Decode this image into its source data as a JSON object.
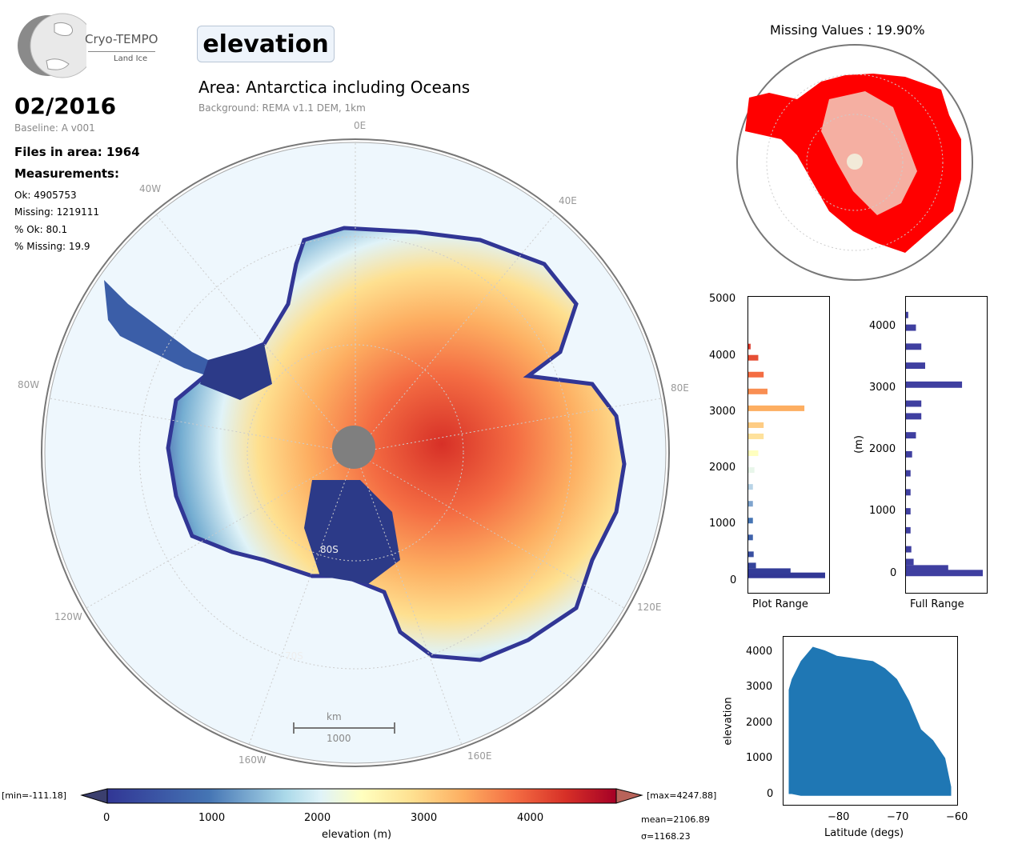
{
  "logo": {
    "name": "Cryo-TEMPO",
    "subtitle": "Land Ice"
  },
  "variable": "elevation",
  "area_title": "Area: Antarctica including Oceans",
  "background_note": "Background: REMA v1.1 DEM, 1km",
  "date": "02/2016",
  "baseline": "Baseline: A v001",
  "files_in_area": "Files in area: 1964",
  "measurements_title": "Measurements:",
  "stats": {
    "ok": "Ok: 4905753",
    "missing": "Missing: 1219111",
    "pct_ok": "% Ok: 80.1",
    "pct_missing": "% Missing: 19.9"
  },
  "map": {
    "longitude_labels": [
      "0E",
      "40E",
      "80E",
      "120E",
      "160E",
      "160W",
      "120W",
      "80W",
      "40W"
    ],
    "latitude_labels": [
      "80S",
      "70S"
    ],
    "scalebar_unit": "km",
    "scalebar_value": "1000"
  },
  "missing_title": "Missing Values : 19.90%",
  "colorbar": {
    "min_label": "[min=-111.18]",
    "max_label": "[max=4247.88]",
    "ticks": [
      "0",
      "1000",
      "2000",
      "3000",
      "4000"
    ],
    "label": "elevation (m)",
    "mean": "mean=2106.89",
    "sigma": "σ=1168.23"
  },
  "hist_plot_range": {
    "ticks": [
      "0",
      "1000",
      "2000",
      "3000",
      "4000",
      "5000"
    ],
    "xlabel": "Plot Range"
  },
  "hist_full_range": {
    "ticks": [
      "0",
      "1000",
      "2000",
      "3000",
      "4000"
    ],
    "xlabel": "Full Range",
    "ylabel": "(m)"
  },
  "chart_data": [
    {
      "type": "bar",
      "name": "hist_plot_range",
      "orientation": "horizontal",
      "ylim": [
        -300,
        5000
      ],
      "bin_centers": [
        25,
        100,
        200,
        400,
        700,
        1000,
        1300,
        1600,
        1900,
        2200,
        2500,
        2700,
        3000,
        3300,
        3600,
        3900,
        4100
      ],
      "counts": [
        1.0,
        0.55,
        0.1,
        0.07,
        0.06,
        0.06,
        0.06,
        0.06,
        0.08,
        0.13,
        0.2,
        0.2,
        0.73,
        0.25,
        0.2,
        0.13,
        0.03
      ]
    },
    {
      "type": "bar",
      "name": "hist_full_range",
      "orientation": "horizontal",
      "ylabel": "(m)",
      "ylim": [
        -300,
        4400
      ],
      "bin_centers": [
        25,
        100,
        200,
        400,
        700,
        1000,
        1300,
        1600,
        1900,
        2200,
        2500,
        2700,
        3000,
        3300,
        3600,
        3900,
        4100
      ],
      "counts": [
        1.0,
        0.55,
        0.1,
        0.07,
        0.06,
        0.06,
        0.06,
        0.06,
        0.08,
        0.13,
        0.2,
        0.2,
        0.73,
        0.25,
        0.2,
        0.13,
        0.03
      ]
    },
    {
      "type": "scatter",
      "name": "elevation_vs_latitude",
      "xlabel": "Latitude (degs)",
      "ylabel": "elevation",
      "xlim": [
        -89,
        -60
      ],
      "ylim": [
        -300,
        4400
      ],
      "x_ticks": [
        "−80",
        "−70",
        "−60"
      ],
      "y_ticks": [
        "0",
        "1000",
        "2000",
        "3000",
        "4000"
      ],
      "envelope_x": [
        -88,
        -87.5,
        -86,
        -84,
        -82,
        -80,
        -78,
        -76,
        -74,
        -72,
        -70,
        -68,
        -66,
        -64,
        -62,
        -61
      ],
      "envelope_upper": [
        2900,
        3200,
        3700,
        4100,
        4000,
        3850,
        3800,
        3750,
        3700,
        3500,
        3200,
        2600,
        1800,
        1500,
        1000,
        200
      ],
      "envelope_lower": [
        0,
        0,
        -50,
        -50,
        -50,
        -50,
        -50,
        -50,
        -50,
        -50,
        -50,
        -50,
        -50,
        -50,
        -50,
        -50
      ]
    }
  ],
  "colors": {
    "ocean": "#eef7fd",
    "missing": "#ff0000",
    "scatter": "#1f77b4",
    "hist_full": "#3f3fa0"
  }
}
